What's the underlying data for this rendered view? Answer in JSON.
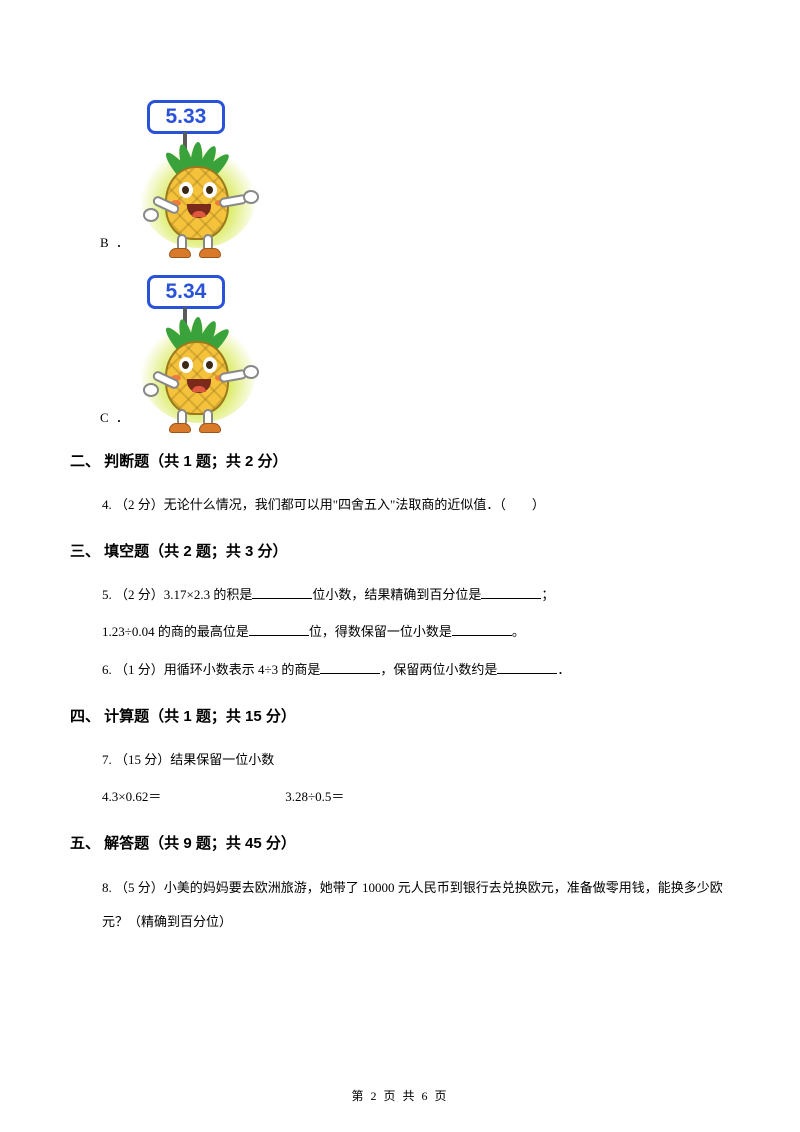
{
  "options": {
    "b": {
      "label": "B ．",
      "sign_value": "5.33"
    },
    "c": {
      "label": "C ．",
      "sign_value": "5.34"
    }
  },
  "sections": {
    "s2": "二、 判断题（共 1 题；共 2 分）",
    "s3": "三、 填空题（共 2 题；共 3 分）",
    "s4": "四、 计算题（共 1 题；共 15 分）",
    "s5": "五、 解答题（共 9 题；共 45 分）"
  },
  "questions": {
    "q4": "4.  （2 分）无论什么情况，我们都可以用\"四舍五入\"法取商的近似值．（　　）",
    "q5a_pre": "5.  （2 分）3.17×2.3 的积是",
    "q5a_mid": "位小数，结果精确到百分位是",
    "q5a_suf": "；",
    "q5b_pre": "1.23÷0.04 的商的最高位是",
    "q5b_mid": "位，得数保留一位小数是",
    "q5b_suf": "。",
    "q6_pre": "6.  （1 分）用循环小数表示 4÷3 的商是",
    "q6_mid": "，保留两位小数约是",
    "q6_suf": "．",
    "q7": "7.  （15 分）结果保留一位小数",
    "q7a": "4.3×0.62＝",
    "q7b": "3.28÷0.5＝",
    "q8": "8.  （5 分）小美的妈妈要去欧洲旅游，她带了 10000 元人民币到银行去兑换欧元，准备做零用钱，能换多少欧元？（精确到百分位）"
  },
  "footer": {
    "page_label_pre": "第 ",
    "page_current": "2",
    "page_label_mid": " 页 共 ",
    "page_total": "6",
    "page_label_suf": " 页"
  },
  "colors": {
    "sign_border": "#2952d9",
    "sign_text": "#2952d9",
    "pineapple_body": "#f5c23b",
    "leaf": "#3aa23a",
    "glow": "#d9ea5c"
  }
}
